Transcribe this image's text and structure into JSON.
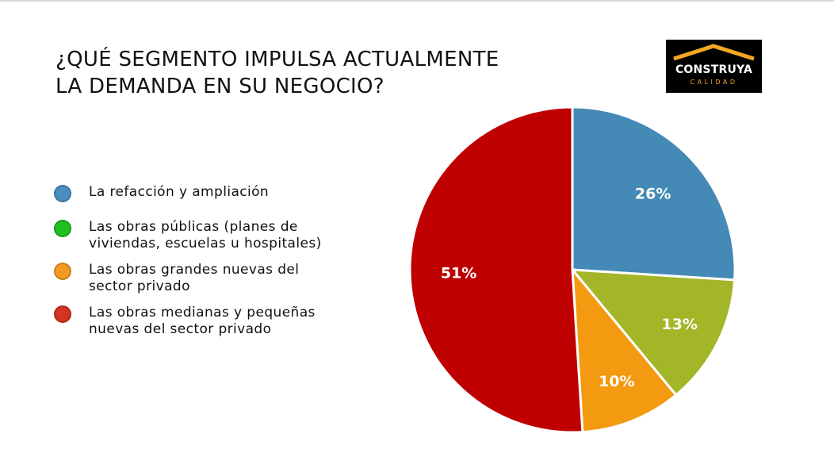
{
  "title": {
    "line1": "¿QUÉ SEGMENTO IMPULSA ACTUALMENTE",
    "line2": "LA DEMANDA EN SU NEGOCIO?"
  },
  "logo": {
    "name": "CONSTRUYA",
    "tagline": "CALIDAD"
  },
  "chart_data": {
    "type": "pie",
    "title": "¿QUÉ SEGMENTO IMPULSA ACTUALMENTE LA DEMANDA EN SU NEGOCIO?",
    "legend_position": "left",
    "slices": [
      {
        "name": "La refacción y ampliación",
        "value": 26,
        "label": "26%",
        "color": "#4589b6",
        "legend_color": "#4a8ec0"
      },
      {
        "name": "Las obras públicas (planes de viviendas, escuelas u hospitales)",
        "value": 13,
        "label": "13%",
        "color": "#a2b628",
        "legend_color": "#20c020"
      },
      {
        "name": "Las obras grandes nuevas del sector privado",
        "value": 10,
        "label": "10%",
        "color": "#f39a10",
        "legend_color": "#f39a22"
      },
      {
        "name": "Las obras medianas y pequeñas nuevas del sector privado",
        "value": 51,
        "label": "51%",
        "color": "#bf0000",
        "legend_color": "#d43322"
      }
    ],
    "legend_lines": [
      [
        "La refacción y ampliación"
      ],
      [
        "Las obras públicas (planes de",
        "viviendas, escuelas u hospitales)"
      ],
      [
        "Las obras grandes nuevas del",
        "sector privado"
      ],
      [
        "Las obras medianas y pequeñas",
        "nuevas del sector privado"
      ]
    ]
  }
}
